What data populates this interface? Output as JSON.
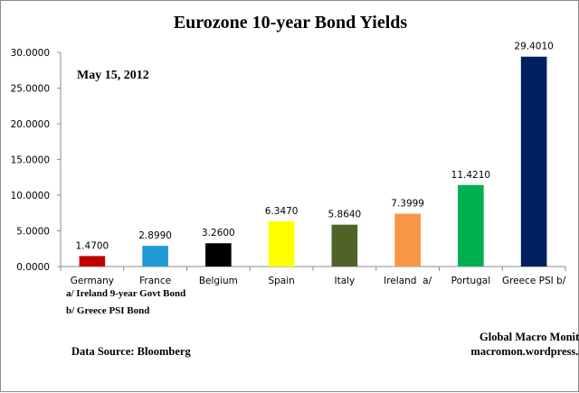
{
  "chart_data": {
    "type": "bar",
    "title": "Eurozone 10-year Bond Yields",
    "date_label": "May 15, 2012",
    "categories": [
      "Germany",
      "France",
      "Belgium",
      "Spain",
      "Italy",
      "Ireland  a/",
      "Portugal",
      "Greece PSI b/"
    ],
    "values": [
      1.47,
      2.899,
      3.26,
      6.347,
      5.864,
      7.3999,
      11.421,
      29.401
    ],
    "value_labels": [
      "1.4700",
      "2.8990",
      "3.2600",
      "6.3470",
      "5.8640",
      "7.3999",
      "11.4210",
      "29.4010"
    ],
    "colors": [
      "#c00000",
      "#1f9ad6",
      "#000000",
      "#ffff00",
      "#4f6228",
      "#f79646",
      "#00b050",
      "#002060"
    ],
    "ylim": [
      0,
      30
    ],
    "yticks": [
      0,
      5,
      10,
      15,
      20,
      25,
      30
    ],
    "ytick_labels": [
      "0.0000",
      "5.0000",
      "10.0000",
      "15.0000",
      "20.0000",
      "25.0000",
      "30.0000"
    ],
    "xlabel": "",
    "ylabel": "",
    "grid": false,
    "legend": "none",
    "notes": [
      "a/ Ireland 9-year Govt Bond",
      "b/  Greece PSI Bond"
    ],
    "source": "Data Source:  Bloomberg",
    "credit_line1": "Global Macro Monitor",
    "credit_line2": "macromon.wordpress.com"
  }
}
